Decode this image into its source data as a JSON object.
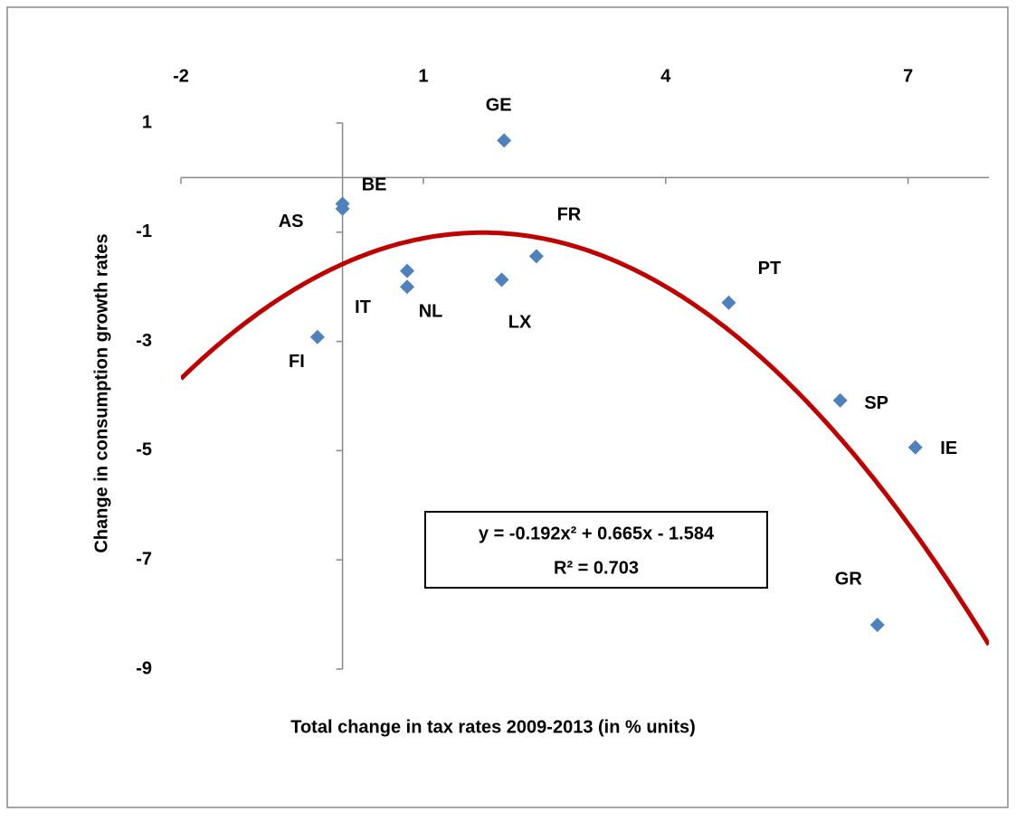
{
  "chart_data": {
    "type": "scatter",
    "x_label": "Total change in tax rates 2009-2013 (in %  units)",
    "y_label": "Change in consumption growth rates",
    "x": [
      2.0,
      0.0,
      0.0,
      2.4,
      1.97,
      0.8,
      0.8,
      -0.31,
      4.78,
      6.16,
      7.09,
      6.62
    ],
    "series": [
      {
        "color": "#4f81bd",
        "values": [
          0.68,
          -0.48,
          -0.57,
          -1.44,
          -1.87,
          -1.71,
          -2.0,
          -2.92,
          -2.29,
          -4.08,
          -4.94,
          -8.19
        ],
        "labels": [
          "GE",
          "BE",
          "AS",
          "FR",
          "LX",
          "IT",
          "NL",
          "FI",
          "PT",
          "SP",
          "IE",
          "GR"
        ]
      }
    ],
    "trendline": {
      "coefficients": [
        -0.192,
        0.665,
        -1.584
      ],
      "color": "#c00000",
      "equation": "y = -0.192x² + 0.665x - 1.584",
      "r_squared": "R² = 0.703"
    },
    "xlim": [
      -2,
      8
    ],
    "ylim": [
      -9,
      1
    ],
    "xticks": [
      -2,
      1,
      4,
      7
    ],
    "yticks": [
      1,
      -1,
      -3,
      -5,
      -7,
      -9
    ]
  }
}
